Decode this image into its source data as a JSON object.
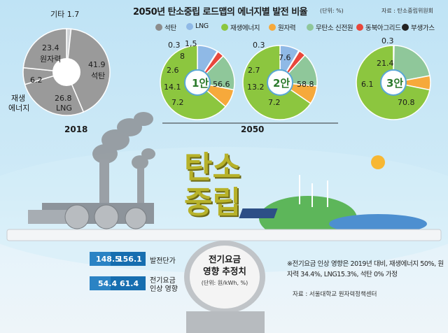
{
  "header": {
    "title": "2050년 탄소중립 로드맵의 에너지별 발전 비율",
    "unit": "(단위: %)",
    "source": "자료 : 탄소중립위원회"
  },
  "legend": [
    {
      "name": "석탄",
      "color": "#8c8c8c"
    },
    {
      "name": "LNG",
      "color": "#8fb9e6"
    },
    {
      "name": "재생에너지",
      "color": "#8cc63f"
    },
    {
      "name": "원자력",
      "color": "#f6a93b"
    },
    {
      "name": "무탄소 신전원",
      "color": "#8fc79a"
    },
    {
      "name": "동북아그리드",
      "color": "#e8473b"
    },
    {
      "name": "부생가스",
      "color": "#222222"
    }
  ],
  "labels": {
    "year2018": "2018",
    "year2050": "2050",
    "plan1": "1안",
    "plan2": "2안",
    "plan3": "3안",
    "d2018_other": "기타 1.7",
    "d2018_nuclear_val": "23.4",
    "d2018_nuclear_name": "원자력",
    "d2018_coal_val": "41.9",
    "d2018_coal_name": "석탄",
    "d2018_renew_val": "6.2",
    "d2018_renew_name1": "재생",
    "d2018_renew_name2": "에너지",
    "d2018_lng_val": "26.8",
    "d2018_lng_name": "LNG"
  },
  "chart_data": [
    {
      "type": "pie",
      "title": "2018",
      "categories": [
        "석탄",
        "LNG",
        "재생에너지",
        "원자력",
        "기타"
      ],
      "values": [
        41.9,
        26.8,
        6.2,
        23.4,
        1.7
      ]
    },
    {
      "type": "pie",
      "title": "1안",
      "categories": [
        "재생에너지",
        "원자력",
        "무탄소 신전원",
        "동북아그리드",
        "부생가스",
        "LNG"
      ],
      "values": [
        56.6,
        7.2,
        14.1,
        2.6,
        0.3,
        8.0
      ],
      "other_label": "1,5"
    },
    {
      "type": "pie",
      "title": "2안",
      "categories": [
        "재생에너지",
        "원자력",
        "무탄소 신전원",
        "동북아그리드",
        "부생가스",
        "LNG"
      ],
      "values": [
        58.8,
        7.2,
        13.2,
        2.7,
        0.3,
        7.6
      ]
    },
    {
      "type": "pie",
      "title": "3안",
      "categories": [
        "재생에너지",
        "원자력",
        "무탄소 신전원",
        "부생가스"
      ],
      "values": [
        70.8,
        6.1,
        21.4,
        0.3
      ]
    }
  ],
  "scene": {
    "sign_line1": "탄소",
    "sign_line2": "중립"
  },
  "bottom": {
    "center_title_1": "전기요금",
    "center_title_2": "영향 추정치",
    "center_unit": "(단위: 원/kWh, %)",
    "row1_from": "148.5",
    "row1_to": "156.1",
    "row1_label": "발전단가",
    "row2_from": "54.4",
    "row2_to": "61.4",
    "row2_label_1": "전기요금",
    "row2_label_2": "인상 영향",
    "note": "※전기요금 인상 영향은 2019년 대비, 재생에너지 50%, 원자력 34.4%, LNG15.3%, 석탄 0% 가정",
    "note_source": "자료 : 서울대학교 원자력정책센터"
  }
}
